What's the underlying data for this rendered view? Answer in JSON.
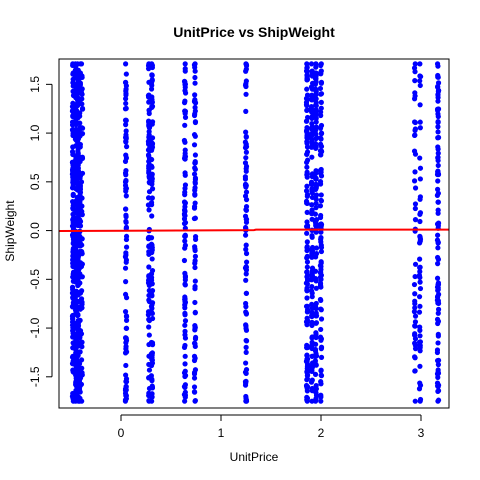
{
  "chart_data": {
    "type": "scatter",
    "title": "UnitPrice vs ShipWeight",
    "xlabel": "UnitPrice",
    "ylabel": "ShipWeight",
    "xlim": [
      -0.62,
      3.28
    ],
    "ylim": [
      -1.82,
      1.76
    ],
    "xticks": [
      0,
      1,
      2,
      3
    ],
    "xtick_labels": [
      "0",
      "1",
      "2",
      "3"
    ],
    "yticks": [
      -1.5,
      -1.0,
      -0.5,
      0.0,
      0.5,
      1.0,
      1.5
    ],
    "ytick_labels": [
      "-1.5",
      "-1.0",
      "-0.5",
      "0.0",
      "0.5",
      "1.0",
      "1.5"
    ],
    "grid": false,
    "point_color": "#0000FF",
    "line_color": "#FF0000",
    "columns": [
      {
        "x": -0.48,
        "density": 1.0
      },
      {
        "x": -0.45,
        "density": 1.0
      },
      {
        "x": -0.43,
        "density": 1.0
      },
      {
        "x": -0.41,
        "density": 0.6
      },
      {
        "x": -0.39,
        "density": 0.3
      },
      {
        "x": 0.05,
        "density": 0.6
      },
      {
        "x": 0.28,
        "density": 0.6
      },
      {
        "x": 0.31,
        "density": 0.6
      },
      {
        "x": 0.64,
        "density": 0.6
      },
      {
        "x": 0.74,
        "density": 0.5
      },
      {
        "x": 1.25,
        "density": 0.55
      },
      {
        "x": 1.86,
        "density": 0.8
      },
      {
        "x": 1.91,
        "density": 0.7
      },
      {
        "x": 1.95,
        "density": 0.7
      },
      {
        "x": 2.0,
        "density": 0.6
      },
      {
        "x": 2.94,
        "density": 0.3
      },
      {
        "x": 2.99,
        "density": 0.3
      },
      {
        "x": 3.17,
        "density": 0.7
      }
    ],
    "y_range": [
      -1.75,
      1.71
    ],
    "trend_line": {
      "x": [
        -0.62,
        1.33,
        1.35,
        3.28
      ],
      "y": [
        -0.005,
        0.005,
        0.01,
        0.01
      ]
    }
  }
}
